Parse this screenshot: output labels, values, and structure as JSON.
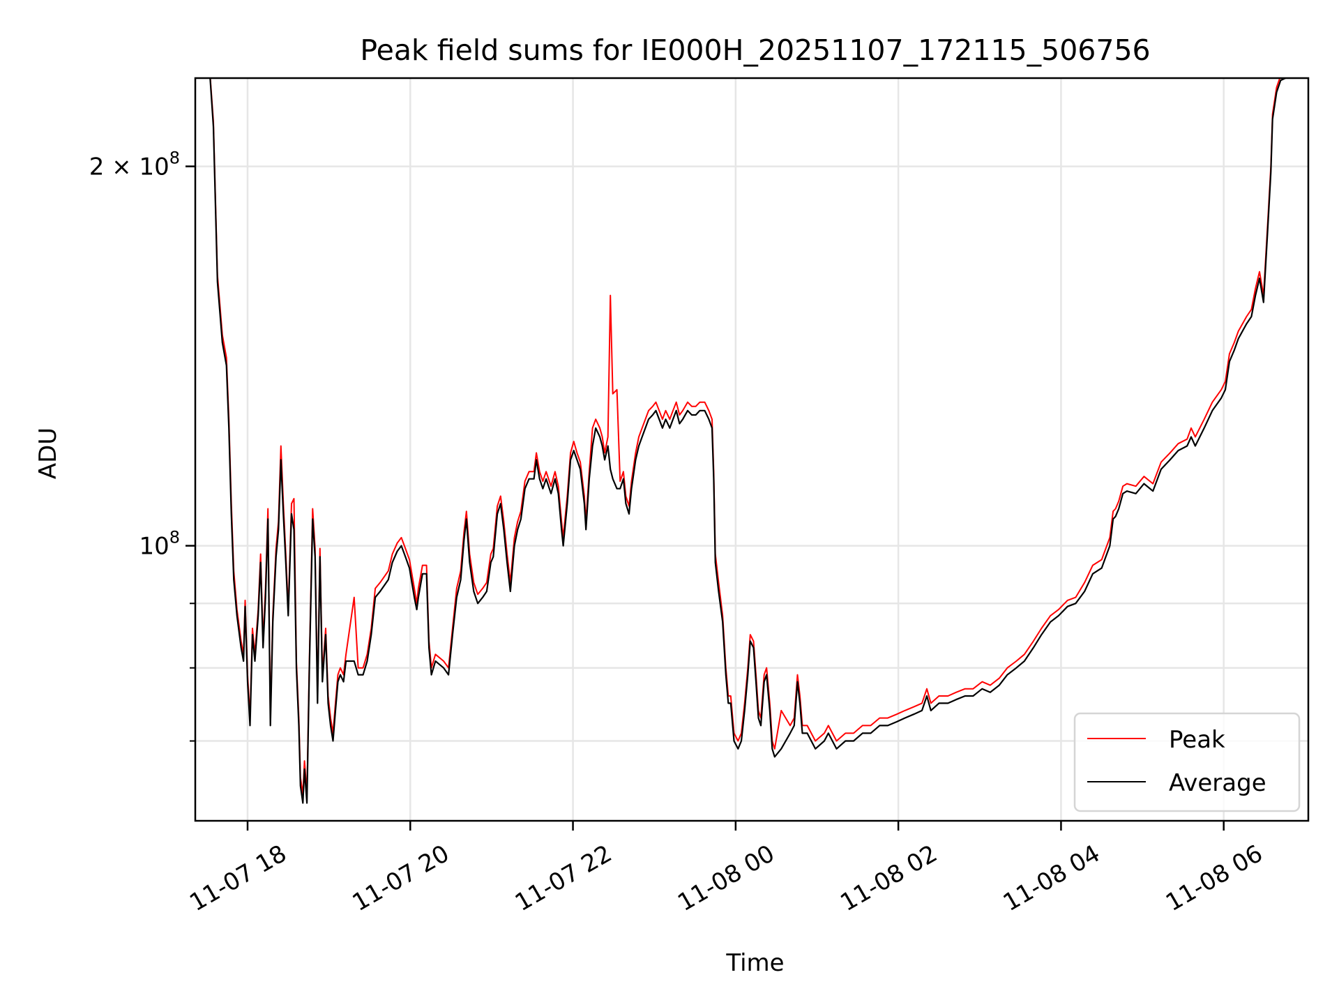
{
  "chart_data": {
    "type": "line",
    "title": "Peak field sums for IE000H_20251107_172115_506756",
    "xlabel": "Time",
    "ylabel": "ADU",
    "yscale": "log",
    "x_units": "hours since 2025-11-07 00:00",
    "xlim": [
      17.357,
      31.04
    ],
    "ylim": [
      60500000,
      235000000
    ],
    "grid": true,
    "legend_position": "lower-right",
    "x_ticks": [
      {
        "value": 18,
        "label": "11-07 18"
      },
      {
        "value": 20,
        "label": "11-07 20"
      },
      {
        "value": 22,
        "label": "11-07 22"
      },
      {
        "value": 24,
        "label": "11-08 00"
      },
      {
        "value": 26,
        "label": "11-08 02"
      },
      {
        "value": 28,
        "label": "11-08 04"
      },
      {
        "value": 30,
        "label": "11-08 06"
      }
    ],
    "y_ticks": [
      {
        "value": 200000000,
        "mantissa": "2 × ",
        "base": "10",
        "exp": "8"
      },
      {
        "value": 100000000,
        "mantissa": "",
        "base": "10",
        "exp": "8"
      }
    ],
    "y_minor_ticks": [
      70000000,
      80000000,
      90000000
    ],
    "value_unit_multiplier": 1000000,
    "x": [
      17.47,
      17.54,
      17.58,
      17.63,
      17.69,
      17.74,
      17.77,
      17.8,
      17.83,
      17.87,
      17.92,
      17.95,
      17.97,
      18.0,
      18.03,
      18.06,
      18.09,
      18.13,
      18.16,
      18.19,
      18.22,
      18.25,
      18.28,
      18.31,
      18.35,
      18.38,
      18.41,
      18.44,
      18.47,
      18.5,
      18.54,
      18.57,
      18.6,
      18.63,
      18.65,
      18.68,
      18.7,
      18.73,
      18.76,
      18.8,
      18.83,
      18.86,
      18.89,
      18.92,
      18.96,
      18.99,
      19.02,
      19.05,
      19.08,
      19.11,
      19.14,
      19.18,
      19.21,
      19.31,
      19.36,
      19.42,
      19.47,
      19.52,
      19.57,
      19.63,
      19.73,
      19.78,
      19.84,
      19.89,
      19.94,
      19.99,
      20.05,
      20.08,
      20.1,
      20.15,
      20.2,
      20.23,
      20.26,
      20.31,
      20.41,
      20.47,
      20.52,
      20.57,
      20.62,
      20.66,
      20.69,
      20.73,
      20.78,
      20.83,
      20.89,
      20.94,
      20.99,
      21.02,
      21.07,
      21.11,
      21.15,
      21.19,
      21.23,
      21.28,
      21.32,
      21.36,
      21.41,
      21.46,
      21.52,
      21.55,
      21.59,
      21.63,
      21.67,
      21.73,
      21.78,
      21.82,
      21.86,
      21.88,
      21.93,
      21.97,
      22.01,
      22.05,
      22.09,
      22.14,
      22.16,
      22.2,
      22.24,
      22.28,
      22.33,
      22.36,
      22.39,
      22.43,
      22.46,
      22.49,
      22.54,
      22.58,
      22.62,
      22.65,
      22.69,
      22.72,
      22.77,
      22.81,
      22.85,
      22.89,
      22.93,
      22.98,
      23.02,
      23.06,
      23.1,
      23.14,
      23.19,
      23.23,
      23.27,
      23.31,
      23.35,
      23.41,
      23.46,
      23.51,
      23.56,
      23.62,
      23.67,
      23.71,
      23.73,
      23.75,
      23.79,
      23.84,
      23.88,
      23.91,
      23.94,
      23.98,
      24.03,
      24.07,
      24.11,
      24.15,
      24.18,
      24.22,
      24.25,
      24.28,
      24.31,
      24.35,
      24.38,
      24.42,
      24.45,
      24.48,
      24.56,
      24.67,
      24.72,
      24.76,
      24.79,
      24.82,
      24.88,
      24.98,
      25.09,
      25.14,
      25.19,
      25.24,
      25.35,
      25.45,
      25.56,
      25.66,
      25.77,
      25.87,
      25.98,
      26.08,
      26.19,
      26.29,
      26.35,
      26.4,
      26.5,
      26.61,
      26.71,
      26.82,
      26.92,
      27.03,
      27.13,
      27.24,
      27.34,
      27.45,
      27.55,
      27.66,
      27.76,
      27.87,
      27.97,
      28.08,
      28.18,
      28.29,
      28.39,
      28.5,
      28.55,
      28.6,
      28.64,
      28.67,
      28.71,
      28.76,
      28.81,
      28.92,
      29.02,
      29.13,
      29.23,
      29.34,
      29.44,
      29.55,
      29.6,
      29.65,
      29.76,
      29.86,
      29.97,
      30.02,
      30.07,
      30.13,
      30.18,
      30.28,
      30.34,
      30.39,
      30.44,
      30.49,
      30.54,
      30.58,
      30.6,
      30.65,
      30.7,
      30.76,
      30.8
    ],
    "series": [
      {
        "name": "Peak",
        "color": "#ff0000",
        "values_millions": [
          250,
          236,
          217,
          164,
          147,
          141,
          126,
          108,
          95.5,
          89,
          84,
          82,
          90.5,
          79,
          73,
          86,
          82,
          89,
          98.5,
          84,
          92.5,
          107,
          73,
          88,
          99.5,
          104.5,
          120,
          108,
          98.5,
          89,
          108,
          109,
          81,
          73,
          65.5,
          63.5,
          67.5,
          63.5,
          81,
          107,
          99.5,
          76,
          99.5,
          79,
          86,
          76,
          73,
          71,
          75,
          79,
          80,
          79,
          82,
          91,
          80,
          80,
          82,
          86,
          92.5,
          93.5,
          95.5,
          98.5,
          100.5,
          101.5,
          99.5,
          97.5,
          92.5,
          90,
          92.5,
          96.5,
          96.5,
          84,
          80,
          82,
          81,
          80,
          86,
          92.5,
          95.5,
          102.5,
          106.5,
          98.5,
          93.5,
          91.5,
          92.5,
          93.5,
          98.5,
          99.5,
          107.5,
          109.5,
          104.5,
          98.5,
          93.5,
          101.5,
          104.5,
          106.5,
          112.5,
          114.5,
          114.5,
          118.5,
          114.5,
          112.5,
          114.5,
          111.5,
          114.5,
          111.5,
          104.5,
          101.5,
          109.5,
          118.5,
          121,
          118.5,
          116.5,
          109.5,
          104.5,
          114.5,
          124,
          126,
          124,
          122,
          118.5,
          122,
          158,
          132,
          133,
          112.5,
          114.5,
          109.5,
          107.5,
          112.5,
          118.5,
          122,
          124,
          126,
          128,
          129,
          130,
          128,
          126,
          128,
          126,
          128,
          130,
          127,
          128,
          130,
          129,
          129,
          130,
          130,
          128,
          126,
          114.5,
          98.5,
          93.5,
          88,
          80,
          76,
          76,
          71,
          70,
          71,
          75,
          80,
          85,
          84,
          79,
          74,
          73,
          79,
          80,
          75,
          70,
          69,
          74,
          72,
          73,
          79,
          76,
          72,
          72,
          70,
          71,
          72,
          71,
          70,
          71,
          71,
          72,
          72,
          73,
          73,
          73.5,
          74,
          74.5,
          75,
          77,
          75,
          76,
          76,
          76.5,
          77,
          77,
          78,
          77.5,
          78.5,
          80,
          81,
          82,
          84,
          86,
          88,
          89,
          90.5,
          91,
          93.5,
          96.5,
          97.5,
          99.5,
          101.5,
          106.5,
          107,
          108.5,
          111.5,
          112,
          111.5,
          113.5,
          112,
          116.5,
          118.5,
          120.5,
          121.5,
          124,
          122,
          126,
          130,
          133,
          135,
          142,
          145,
          148,
          152,
          154,
          160,
          165,
          158,
          180,
          200,
          220,
          231,
          236,
          236,
          250
        ]
      },
      {
        "name": "Average",
        "color": "#000000",
        "values_millions": [
          250,
          235,
          215,
          162,
          145,
          139,
          124,
          106,
          94,
          88,
          83,
          81,
          89.5,
          78,
          72,
          85,
          81,
          88,
          97,
          83,
          91,
          105,
          72,
          87,
          98,
          103,
          117,
          106,
          97,
          88,
          106,
          103,
          80,
          72,
          64.5,
          62.5,
          66.5,
          62.5,
          80,
          105,
          98,
          75,
          98,
          78,
          85,
          75,
          72,
          70,
          74,
          78,
          79,
          78,
          81,
          81,
          79,
          79,
          81,
          85,
          91,
          92,
          94,
          97,
          99,
          100,
          98,
          96,
          91,
          89,
          91,
          95,
          95,
          83,
          79,
          81,
          80,
          79,
          85,
          91,
          94,
          101,
          105,
          97,
          92,
          90,
          91,
          92,
          97,
          98,
          106,
          108,
          103,
          97,
          92,
          100,
          103,
          105,
          111,
          113,
          113,
          117,
          113,
          111,
          113,
          110,
          113,
          110,
          103,
          100,
          108,
          117,
          119,
          117,
          115,
          108,
          103,
          113,
          120,
          124,
          122,
          120,
          117,
          120,
          115,
          113,
          111,
          111,
          113,
          108,
          106,
          111,
          117,
          120,
          122,
          124,
          126,
          127,
          128,
          126,
          124,
          126,
          124,
          126,
          128,
          125,
          126,
          128,
          127,
          127,
          128,
          128,
          126,
          124,
          113,
          97,
          92,
          87,
          79,
          75,
          75,
          70,
          69,
          70,
          74,
          79,
          84,
          83,
          78,
          73,
          72,
          78,
          79,
          74,
          69,
          68,
          69,
          71,
          72,
          78,
          75,
          71,
          71,
          69,
          70,
          71,
          70,
          69,
          70,
          70,
          71,
          71,
          72,
          72,
          72.5,
          73,
          73.5,
          74,
          76,
          74,
          75,
          75,
          75.5,
          76,
          76,
          77,
          76.5,
          77.5,
          79,
          80,
          81,
          83,
          85,
          87,
          88,
          89.5,
          90,
          92,
          95,
          96,
          98,
          100,
          105,
          105.5,
          107,
          110,
          110.5,
          110,
          112,
          110.5,
          115,
          117,
          119,
          120,
          122,
          120,
          124,
          128,
          131,
          133,
          140,
          143,
          146,
          150,
          152,
          158,
          163,
          156,
          178,
          198,
          218,
          229,
          234,
          235,
          250
        ]
      }
    ]
  }
}
